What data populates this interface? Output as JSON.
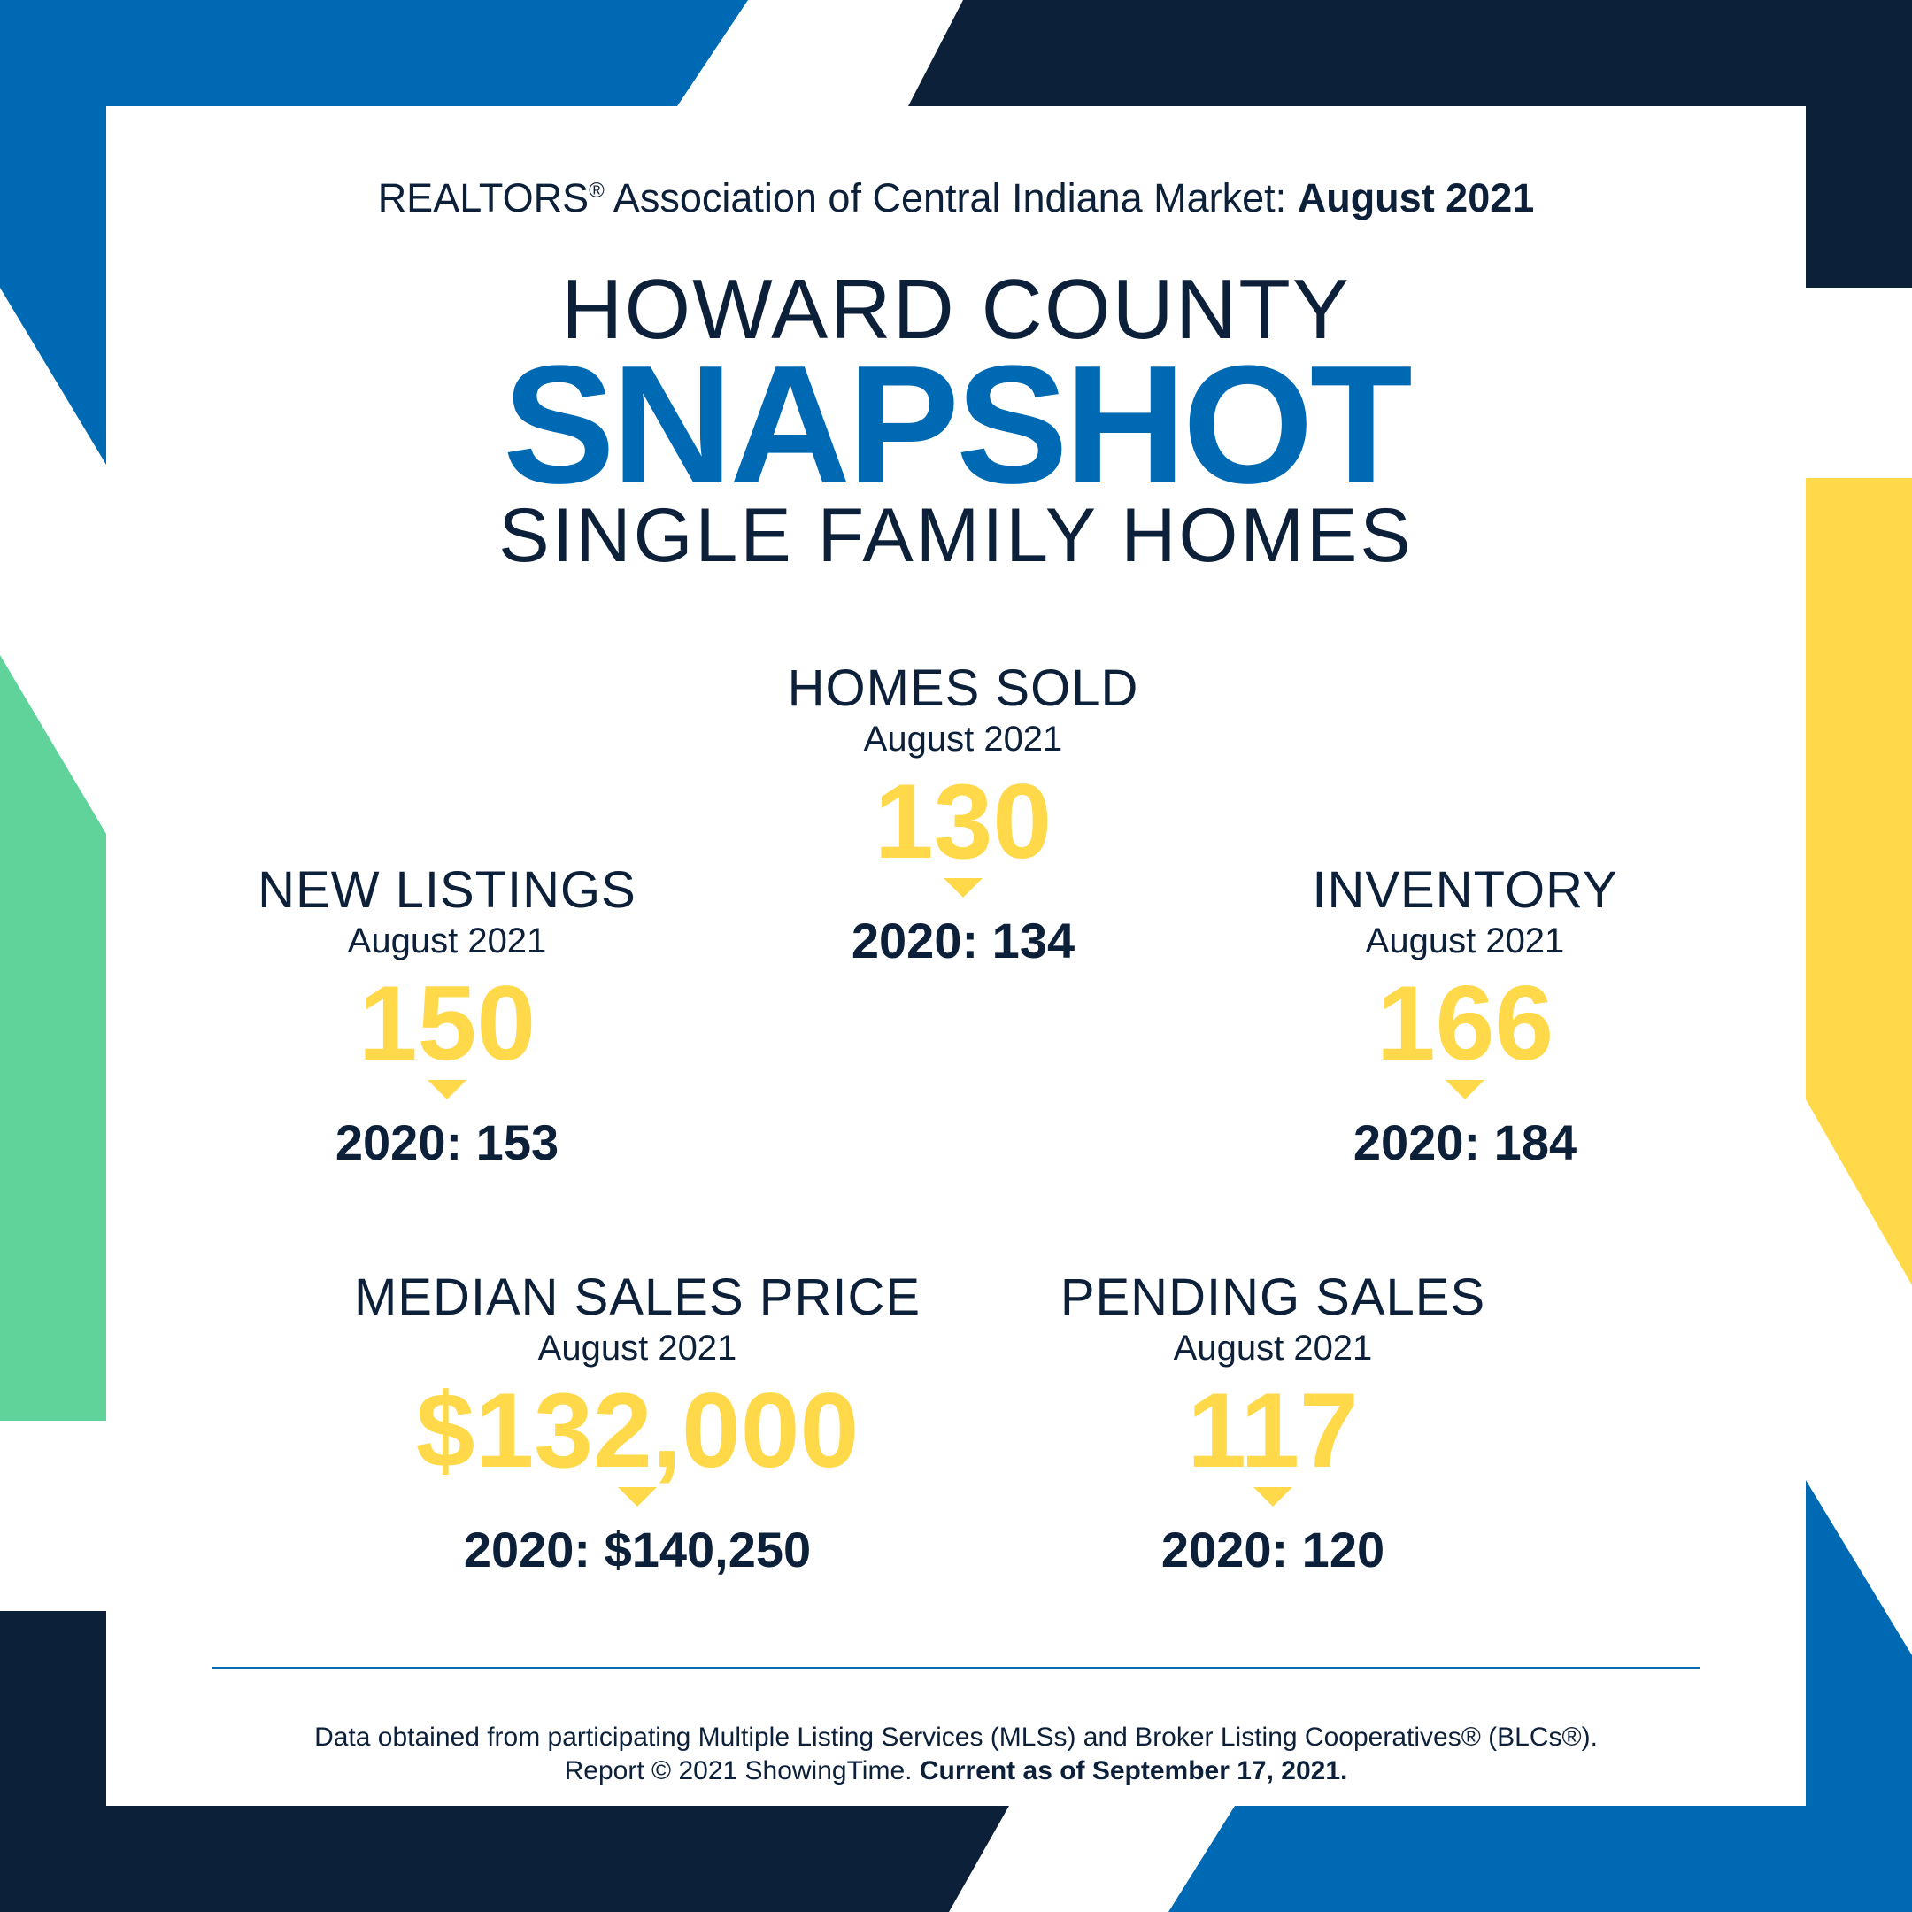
{
  "brand_colors": {
    "navy": "#0d2039",
    "blue": "#0069b4",
    "yellow": "#ffd94a",
    "green": "#5fd39a"
  },
  "header": {
    "org": "REALTORS",
    "registered_mark": "®",
    "market_text": " Association of Central Indiana Market: ",
    "month": "August 2021"
  },
  "title": {
    "county": "HOWARD COUNTY",
    "snapshot": "SNAPSHOT",
    "subtitle": "SINGLE FAMILY HOMES"
  },
  "metrics": {
    "homes_sold": {
      "label": "HOMES SOLD",
      "period": "August 2021",
      "value": "130",
      "prev": "2020: 134"
    },
    "new_listings": {
      "label": "NEW LISTINGS",
      "period": "August 2021",
      "value": "150",
      "prev": "2020: 153"
    },
    "inventory": {
      "label": "INVENTORY",
      "period": "August 2021",
      "value": "166",
      "prev": "2020: 184"
    },
    "median_price": {
      "label": "MEDIAN SALES PRICE",
      "period": "August 2021",
      "value": "$132,000",
      "prev": "2020: $140,250"
    },
    "pending_sales": {
      "label": "PENDING SALES",
      "period": "August 2021",
      "value": "117",
      "prev": "2020: 120"
    }
  },
  "footer": {
    "line1": "Data obtained from participating Multiple Listing Services (MLSs) and Broker Listing Cooperatives® (BLCs®).",
    "line2_a": "Report © 2021 ShowingTime. ",
    "line2_b": "Current as of September 17, 2021."
  }
}
